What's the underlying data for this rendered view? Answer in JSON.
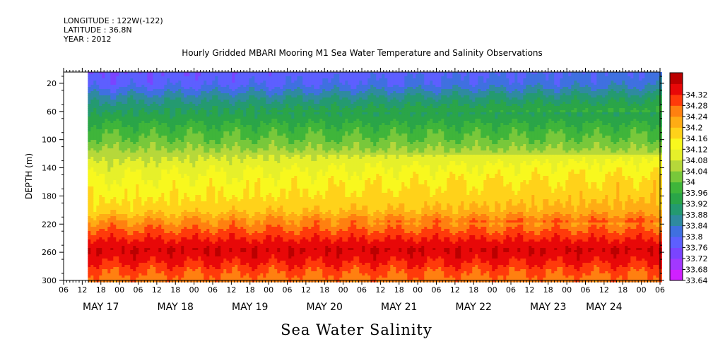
{
  "header": {
    "longitude": "LONGITUDE : 122W(-122)",
    "latitude": "LATITUDE : 36.8N",
    "year": "YEAR : 2012"
  },
  "chart_data": {
    "type": "heatmap",
    "title": "Hourly Gridded MBARI Mooring M1 Sea Water Temperature and Salinity Observations",
    "bottom_title": "Sea Water Salinity",
    "ylabel": "DEPTH (m)",
    "y_axis_reversed": true,
    "ylim": [
      300,
      4
    ],
    "y_ticks": [
      20,
      60,
      100,
      140,
      180,
      220,
      260,
      300
    ],
    "x_hour_ticks": [
      "06",
      "12",
      "18",
      "00",
      "06",
      "12",
      "18",
      "00",
      "06",
      "12",
      "18",
      "00",
      "06",
      "12",
      "18",
      "00",
      "06",
      "12",
      "18",
      "00",
      "06",
      "12",
      "18",
      "00",
      "06",
      "12",
      "18",
      "00",
      "06",
      "12",
      "18",
      "00",
      "06"
    ],
    "x_day_labels": [
      {
        "label": "MAY 17",
        "hour_index": 2
      },
      {
        "label": "MAY 18",
        "hour_index": 6
      },
      {
        "label": "MAY 19",
        "hour_index": 10
      },
      {
        "label": "MAY 20",
        "hour_index": 14
      },
      {
        "label": "MAY 21",
        "hour_index": 18
      },
      {
        "label": "MAY 22",
        "hour_index": 22
      },
      {
        "label": "MAY 23",
        "hour_index": 26
      },
      {
        "label": "MAY 24",
        "hour_index": 29
      }
    ],
    "data_start_hour_index": 1.3,
    "colorbar": {
      "levels": [
        33.64,
        33.68,
        33.72,
        33.76,
        33.8,
        33.84,
        33.88,
        33.92,
        33.96,
        34,
        34.04,
        34.08,
        34.12,
        34.16,
        34.2,
        34.24,
        34.28,
        34.32
      ],
      "labels": [
        "33.64",
        "33.68",
        "33.72",
        "33.76",
        "33.8",
        "33.84",
        "33.88",
        "33.92",
        "33.96",
        "34",
        "34.04",
        "34.08",
        "34.12",
        "34.16",
        "34.2",
        "34.24",
        "34.28",
        "34.32"
      ],
      "colors": [
        "#d020ff",
        "#a238ff",
        "#7a44ff",
        "#5d5fff",
        "#3f70e0",
        "#2f8aa0",
        "#249a70",
        "#2aa548",
        "#3fb53a",
        "#78c83a",
        "#b6d83a",
        "#e6f02a",
        "#f8f81e",
        "#ffd21a",
        "#ffac14",
        "#ff8010",
        "#ff3a0a",
        "#e80808",
        "#bb0000"
      ]
    },
    "depth_profile": [
      {
        "depth": 4,
        "value": 33.72
      },
      {
        "depth": 20,
        "value": 33.74
      },
      {
        "depth": 40,
        "value": 33.82
      },
      {
        "depth": 60,
        "value": 33.88
      },
      {
        "depth": 80,
        "value": 33.93
      },
      {
        "depth": 100,
        "value": 33.97
      },
      {
        "depth": 120,
        "value": 34.02
      },
      {
        "depth": 140,
        "value": 34.06
      },
      {
        "depth": 160,
        "value": 34.09
      },
      {
        "depth": 180,
        "value": 34.11
      },
      {
        "depth": 200,
        "value": 34.14
      },
      {
        "depth": 220,
        "value": 34.22
      },
      {
        "depth": 240,
        "value": 34.28
      },
      {
        "depth": 255,
        "value": 34.32
      },
      {
        "depth": 270,
        "value": 34.29
      },
      {
        "depth": 285,
        "value": 34.25
      },
      {
        "depth": 300,
        "value": 34.22
      }
    ]
  }
}
